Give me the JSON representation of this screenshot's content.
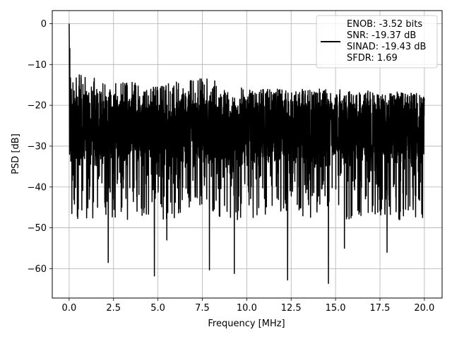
{
  "chart_data": {
    "type": "line",
    "title": "",
    "xlabel": "Frequency [MHz]",
    "ylabel": "PSD [dB]",
    "xlim": [
      -0.95,
      21.0
    ],
    "ylim": [
      -67.2,
      3.2
    ],
    "xticks": [
      0.0,
      2.5,
      5.0,
      7.5,
      10.0,
      12.5,
      15.0,
      17.5,
      20.0
    ],
    "xtick_labels": [
      "0.0",
      "2.5",
      "5.0",
      "7.5",
      "10.0",
      "12.5",
      "15.0",
      "17.5",
      "20.0"
    ],
    "yticks": [
      0,
      -10,
      -20,
      -30,
      -40,
      -50,
      -60
    ],
    "ytick_labels": [
      "0",
      "−10",
      "−20",
      "−30",
      "−40",
      "−50",
      "−60"
    ],
    "grid": true,
    "legend_position": "top-right",
    "series_color": "#000000",
    "legend": {
      "line1": "ENOB: -3.52 bits",
      "line2": "SNR: -19.37 dB",
      "line3": "SINAD: -19.43 dB",
      "line4": "SFDR: 1.69"
    },
    "series": [
      {
        "x_start": 0.0,
        "x_end": 20.0,
        "noise_floor_db": [
          -20,
          -30
        ],
        "peak_db": 0,
        "peak_x": 0.0,
        "upper_envelope": [
          [
            0.0,
            0
          ],
          [
            0.1,
            -10
          ],
          [
            0.5,
            -12
          ],
          [
            1.0,
            -13
          ],
          [
            5.0,
            -15
          ],
          [
            7.7,
            -13
          ],
          [
            10.0,
            -16
          ],
          [
            15.0,
            -16
          ],
          [
            20.0,
            -17
          ]
        ],
        "notable_minima": [
          [
            0.15,
            -46.5
          ],
          [
            1.6,
            -45
          ],
          [
            2.2,
            -58.5
          ],
          [
            4.8,
            -61.8
          ],
          [
            5.5,
            -53
          ],
          [
            7.9,
            -60.3
          ],
          [
            9.3,
            -61.2
          ],
          [
            12.3,
            -62.8
          ],
          [
            14.6,
            -63.6
          ],
          [
            15.5,
            -55
          ],
          [
            17.9,
            -56
          ],
          [
            19.9,
            -47.5
          ]
        ]
      }
    ]
  }
}
